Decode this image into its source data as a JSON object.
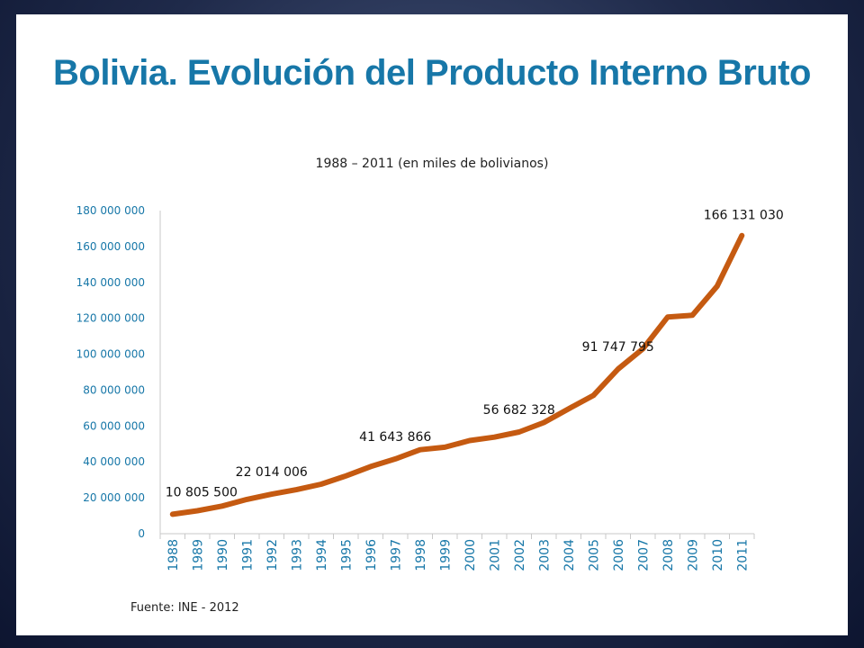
{
  "slide": {
    "title": "Bolivia. Evolución del Producto Interno Bruto",
    "subtitle": "1988 – 2011 (en miles de bolivianos)",
    "source": "Fuente: INE - 2012"
  },
  "colors": {
    "title": "#1777a8",
    "line": "#c55a11",
    "axis_text": "#1777a8",
    "frame": "#1f2a4a"
  },
  "chart_data": {
    "type": "line",
    "title": "Bolivia. Evolución del Producto Interno Bruto",
    "subtitle": "1988 – 2011 (en miles de bolivianos)",
    "xlabel": "",
    "ylabel": "",
    "ylim": [
      0,
      180000000
    ],
    "yticks": [
      0,
      20000000,
      40000000,
      60000000,
      80000000,
      100000000,
      120000000,
      140000000,
      160000000,
      180000000
    ],
    "ytick_labels": [
      "0",
      "20 000 000",
      "40 000 000",
      "60 000 000",
      "80 000 000",
      "100 000 000",
      "120 000 000",
      "140 000 000",
      "160 000 000",
      "180 000 000"
    ],
    "grid": false,
    "legend": "none",
    "x": [
      "1988",
      "1989",
      "1990",
      "1991",
      "1992",
      "1993",
      "1994",
      "1995",
      "1996",
      "1997",
      "1998",
      "1999",
      "2000",
      "2001",
      "2002",
      "2003",
      "2004",
      "2005",
      "2006",
      "2007",
      "2008",
      "2009",
      "2010",
      "2011"
    ],
    "series": [
      {
        "values": [
          10805500,
          12800000,
          15400000,
          19100000,
          22014006,
          24500000,
          27600000,
          32200000,
          37400000,
          41643866,
          46800000,
          48200000,
          51900000,
          53800000,
          56682328,
          61900000,
          69600000,
          77000000,
          91747795,
          103000000,
          120700000,
          121700000,
          137900000,
          166131030
        ]
      }
    ],
    "data_labels": [
      {
        "x": "1988",
        "text": "10 805 500"
      },
      {
        "x": "1992",
        "text": "22 014 006"
      },
      {
        "x": "1997",
        "text": "41 643 866"
      },
      {
        "x": "2002",
        "text": "56 682 328"
      },
      {
        "x": "2006",
        "text": "91 747 795"
      },
      {
        "x": "2011",
        "text": "166 131 030"
      }
    ]
  }
}
